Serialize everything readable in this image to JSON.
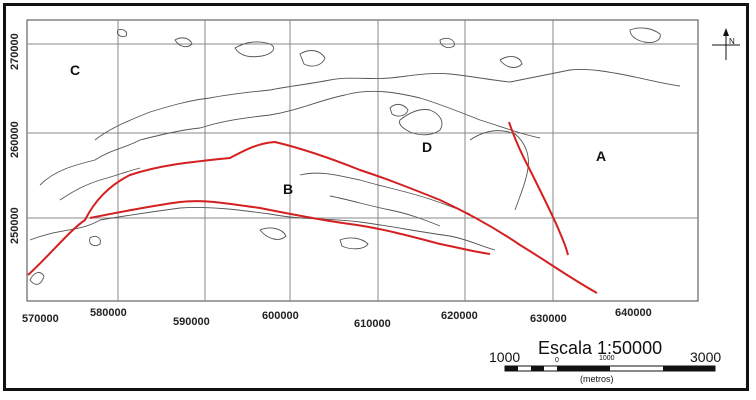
{
  "map": {
    "y_labels": [
      "270000",
      "260000",
      "250000"
    ],
    "x_labels": [
      "570000",
      "580000",
      "590000",
      "600000",
      "610000",
      "620000",
      "630000",
      "640000"
    ],
    "regions": [
      "A",
      "B",
      "C",
      "D"
    ],
    "fault_color": "#d42020",
    "contour_color": "#555555",
    "grid_color": "#8a8a8a"
  },
  "north_arrow": {
    "label": "N"
  },
  "scale_bar": {
    "title": "Escala 1:50000",
    "left_value": "1000",
    "zero": "0",
    "mid_value": "1000",
    "right_value": "3000",
    "unit": "(metros)"
  }
}
